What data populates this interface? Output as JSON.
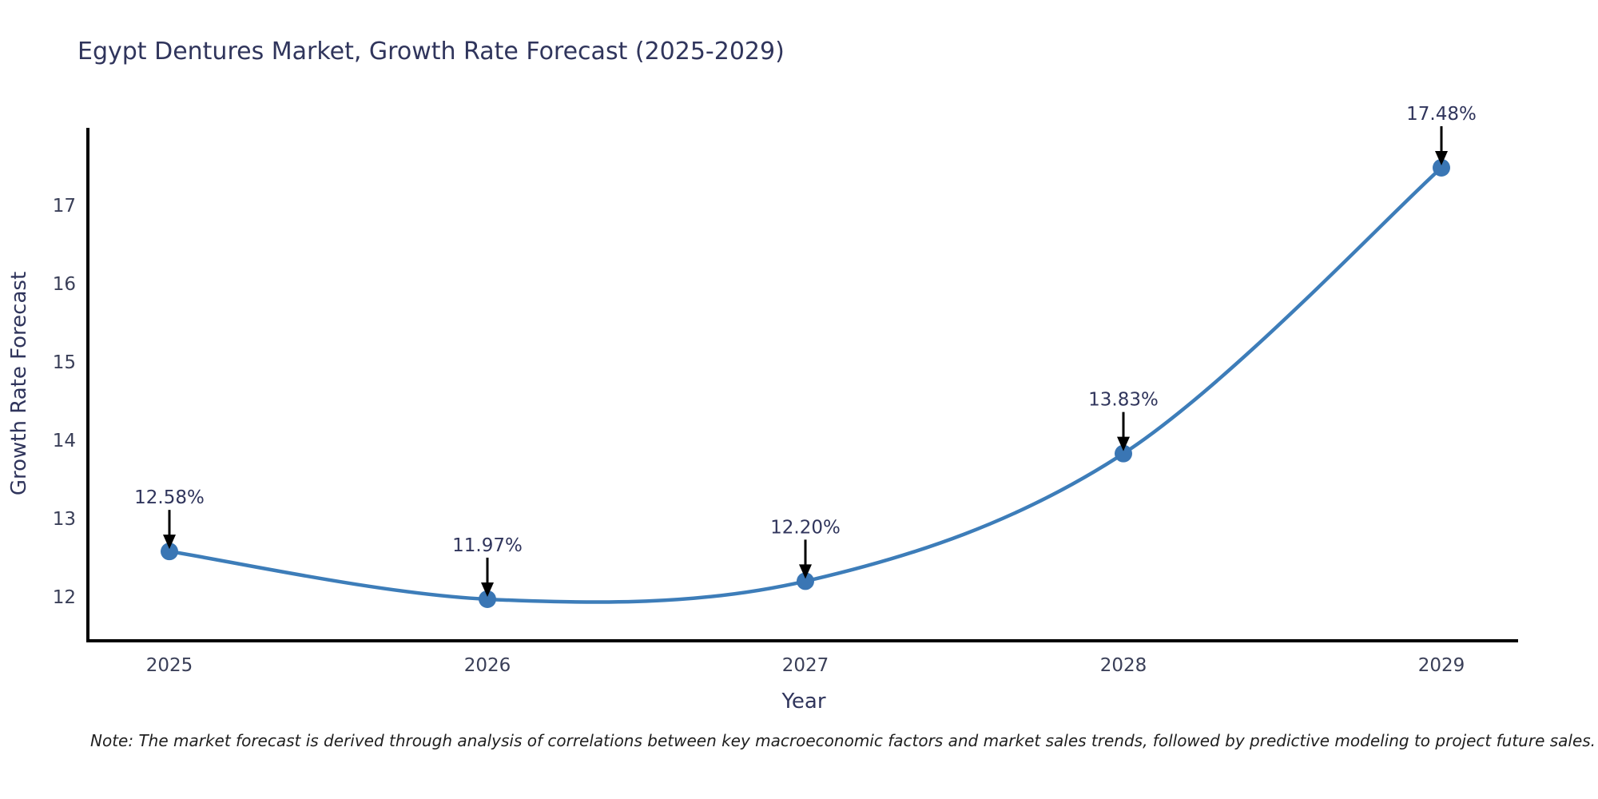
{
  "title": "Egypt Dentures Market, Growth Rate Forecast (2025-2029)",
  "note": "Note: The market forecast is derived through analysis of correlations between key macroeconomic factors and market sales trends, followed by predictive modeling to project future sales.",
  "colors": {
    "line": "#3d7db9",
    "marker": "#3a76b4",
    "arrow": "#000000",
    "axis": "#000000",
    "text": "#30355c",
    "tick_text": "#3a3f58",
    "note_text": "#1f1f1f"
  },
  "chart_data": {
    "type": "line",
    "title": "Egypt Dentures Market, Growth Rate Forecast (2025-2029)",
    "xlabel": "Year",
    "ylabel": "Growth Rate Forecast",
    "categories": [
      2025,
      2026,
      2027,
      2028,
      2029
    ],
    "values": [
      12.58,
      11.97,
      12.2,
      13.83,
      17.48
    ],
    "point_labels": [
      "12.58%",
      "11.97%",
      "12.20%",
      "13.83%",
      "17.48%"
    ],
    "yticks": [
      12,
      13,
      14,
      15,
      16,
      17
    ],
    "ylim": [
      11.44,
      18.0
    ],
    "grid": false,
    "legend": "none",
    "line_style": "smooth-spline",
    "marker": "circle",
    "annotations": "value labels with black arrows pointing to each data point"
  }
}
